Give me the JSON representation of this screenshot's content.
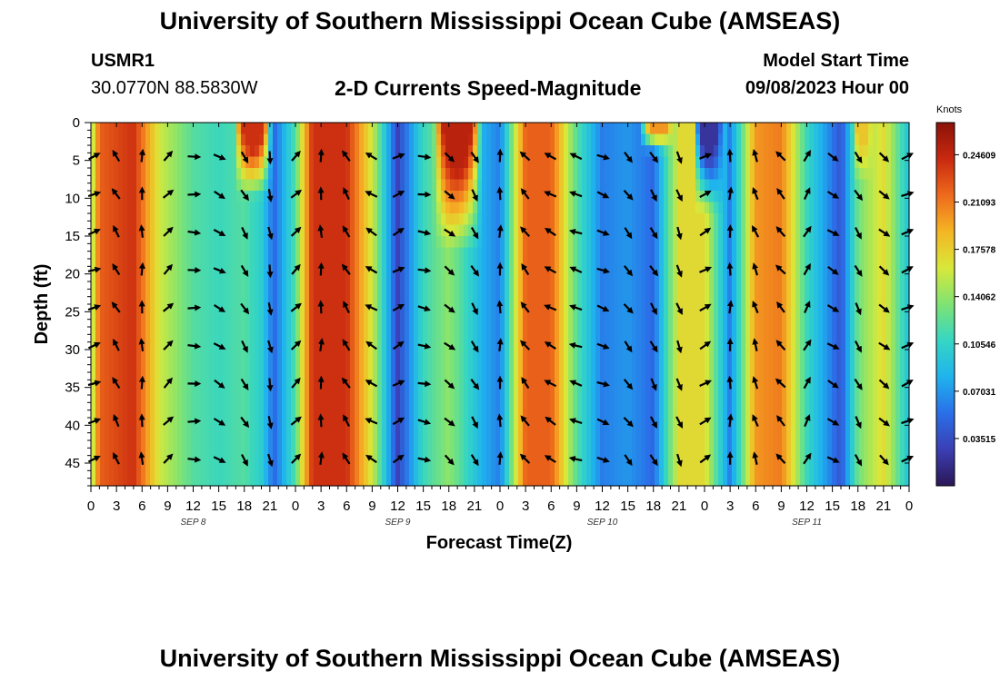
{
  "header": {
    "title": "University of Southern Mississippi Ocean Cube (AMSEAS)",
    "station_id": "USMR1",
    "station_coords": "30.0770N  88.5830W",
    "plot_title": "2-D Currents Speed-Magnitude",
    "model_start_label": "Model Start Time",
    "model_start_value": "09/08/2023 Hour 00"
  },
  "footer": {
    "title": "University of Southern Mississippi Ocean Cube (AMSEAS)"
  },
  "colorbar": {
    "unit_label": "Knots",
    "tick_labels": [
      "0.24609",
      "0.21093",
      "0.17578",
      "0.14062",
      "0.10546",
      "0.07031",
      "0.03515"
    ],
    "tick_values": [
      0.24609,
      0.21093,
      0.17578,
      0.14062,
      0.10546,
      0.07031,
      0.03515
    ],
    "range": [
      0.0,
      0.27
    ],
    "colors": [
      "#2b1755",
      "#3b3fb4",
      "#2a6fe8",
      "#1fb3ee",
      "#35d6c3",
      "#7fe373",
      "#d8e83a",
      "#f5b524",
      "#ee6a1c",
      "#c9290f",
      "#8a1208"
    ]
  },
  "chart_data": {
    "type": "heatmap",
    "title": "2-D Currents Speed-Magnitude",
    "xlabel": "Forecast Time(Z)",
    "ylabel": "Depth (ft)",
    "x_tick_labels": [
      "0",
      "3",
      "6",
      "9",
      "12",
      "15",
      "18",
      "21",
      "0",
      "3",
      "6",
      "9",
      "12",
      "15",
      "18",
      "21",
      "0",
      "3",
      "6",
      "9",
      "12",
      "15",
      "18",
      "21",
      "0",
      "3",
      "6",
      "9",
      "12",
      "15",
      "18",
      "21",
      "0"
    ],
    "x_range_hours": [
      0,
      96
    ],
    "day_labels": [
      {
        "label": "SEP 8",
        "hour": 12
      },
      {
        "label": "SEP 9",
        "hour": 36
      },
      {
        "label": "SEP 10",
        "hour": 60
      },
      {
        "label": "SEP 11",
        "hour": 84
      }
    ],
    "y_tick_labels": [
      "0",
      "5",
      "10",
      "15",
      "20",
      "25",
      "30",
      "35",
      "40",
      "45"
    ],
    "y_ticks": [
      0,
      5,
      10,
      15,
      20,
      25,
      30,
      35,
      40,
      45
    ],
    "ylim": [
      0,
      48
    ],
    "z_unit": "Knots",
    "speed_profile_keyframes": {
      "hours": [
        0,
        1,
        5,
        8,
        12,
        15,
        18,
        20,
        21.5,
        24,
        26,
        30,
        33,
        36,
        39,
        42,
        46,
        48,
        51,
        54,
        57,
        60,
        63,
        66,
        69,
        72,
        75,
        78,
        81,
        84,
        88,
        90,
        93,
        96
      ],
      "speed_knots": [
        0.14,
        0.22,
        0.24,
        0.16,
        0.12,
        0.11,
        0.12,
        0.1,
        0.05,
        0.12,
        0.24,
        0.24,
        0.16,
        0.03,
        0.11,
        0.14,
        0.08,
        0.06,
        0.22,
        0.22,
        0.12,
        0.06,
        0.07,
        0.05,
        0.17,
        0.17,
        0.06,
        0.2,
        0.21,
        0.11,
        0.04,
        0.13,
        0.17,
        0.09
      ]
    },
    "surface_features": [
      {
        "hour_center": 19,
        "hour_halfwidth": 2.2,
        "depth_extent_ft": 10,
        "speed_knots": 0.24
      },
      {
        "hour_center": 43,
        "hour_halfwidth": 2.8,
        "depth_extent_ft": 17,
        "speed_knots": 0.25
      },
      {
        "hour_center": 72.5,
        "hour_halfwidth": 1.8,
        "depth_extent_ft": 12,
        "speed_knots": 0.02
      },
      {
        "hour_center": 66.5,
        "hour_halfwidth": 2.0,
        "depth_extent_ft": 4,
        "speed_knots": 0.2
      },
      {
        "hour_center": 90.5,
        "hour_halfwidth": 1.2,
        "depth_extent_ft": 8,
        "speed_knots": 0.18
      }
    ],
    "vector_depths_ft": [
      4.5,
      9.5,
      14.5,
      19.5,
      24.5,
      29.5,
      34.5,
      39.5,
      44.5
    ],
    "vector_hours": [
      0.3,
      3,
      6,
      9,
      12,
      15,
      18,
      21,
      24,
      27,
      30,
      33,
      36,
      39,
      42,
      45,
      48,
      51,
      54,
      57,
      60,
      63,
      66,
      69,
      72,
      75,
      78,
      81,
      84,
      87,
      90,
      93,
      95.7
    ],
    "vector_direction_deg_keyframes": {
      "hours": [
        0,
        3,
        6,
        9,
        12,
        15,
        18,
        21,
        24,
        27,
        30,
        33,
        36,
        39,
        42,
        45,
        48,
        51,
        54,
        57,
        60,
        63,
        66,
        69,
        72,
        75,
        78,
        81,
        84,
        87,
        90,
        93,
        96
      ],
      "direction_deg": [
        40,
        330,
        0,
        45,
        90,
        120,
        150,
        170,
        45,
        0,
        330,
        300,
        60,
        100,
        130,
        150,
        0,
        320,
        300,
        290,
        110,
        140,
        150,
        160,
        60,
        0,
        340,
        320,
        30,
        120,
        150,
        130,
        60
      ]
    }
  }
}
